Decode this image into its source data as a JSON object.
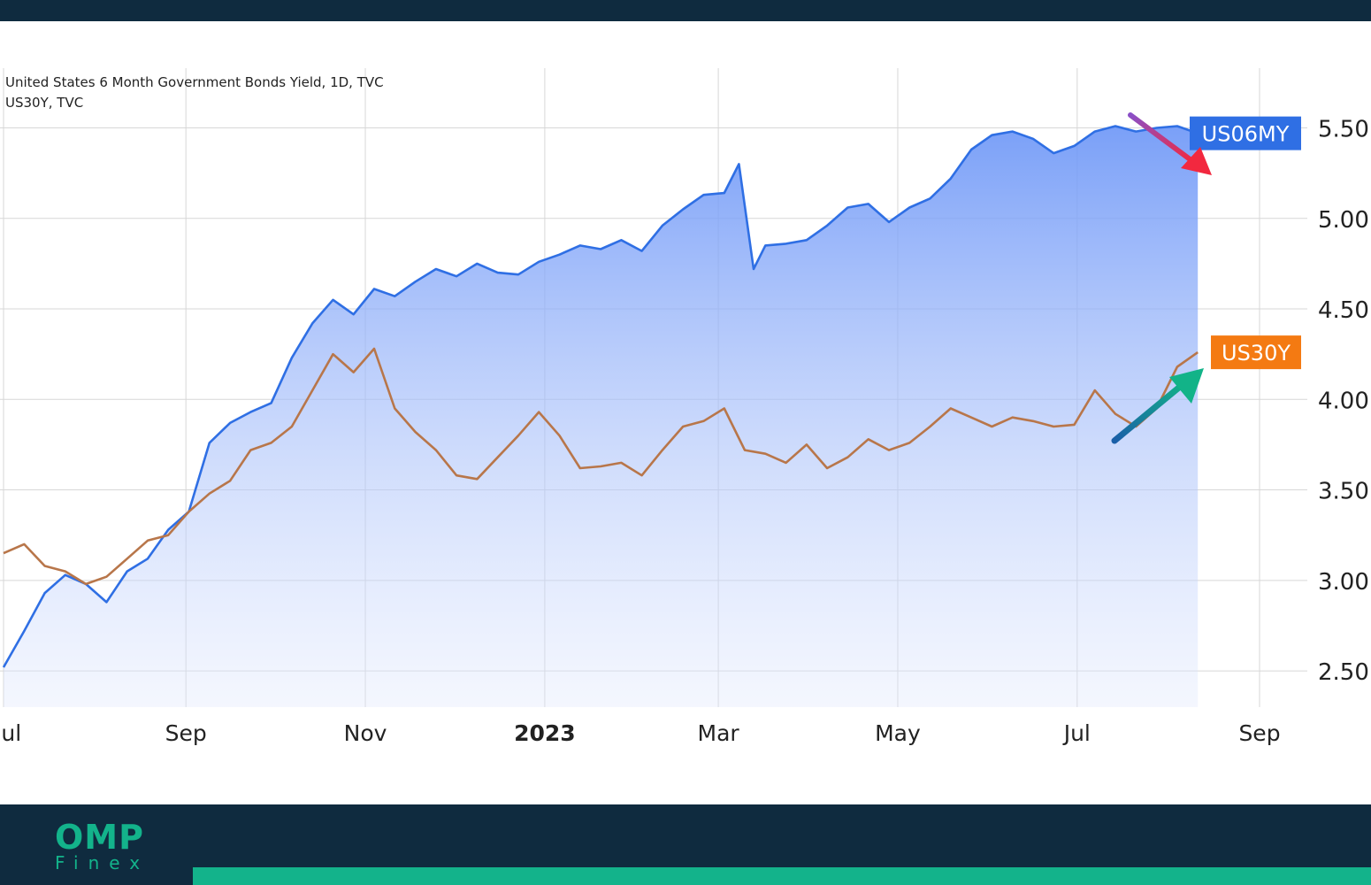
{
  "chart_data": {
    "type": "area",
    "title_lines": [
      "United States 6 Month Government Bonds Yield, 1D, TVC",
      "US30Y, TVC"
    ],
    "x_tick_labels": [
      "Jul",
      "Sep",
      "Nov",
      "2023",
      "Mar",
      "May",
      "Jul",
      "Sep"
    ],
    "x_ticks": [
      "2022-07-01",
      "2022-09-01",
      "2022-11-01",
      "2023-01-01",
      "2023-03-01",
      "2023-05-01",
      "2023-07-01",
      "2023-09-01"
    ],
    "x_range": [
      "2022-07-01",
      "2023-09-01"
    ],
    "y_ticks": [
      2.5,
      3.0,
      3.5,
      4.0,
      4.5,
      5.0,
      5.5
    ],
    "y_tick_labels": [
      "2.50",
      "3.00",
      "3.50",
      "4.00",
      "4.50",
      "5.00",
      "5.50"
    ],
    "ylim": [
      2.3,
      5.83
    ],
    "y_axis_side": "right",
    "grid": true,
    "series": [
      {
        "name": "US06MY",
        "color": "#2f6fe4",
        "fill": true,
        "x": [
          "2022-07-01",
          "2022-07-08",
          "2022-07-15",
          "2022-07-22",
          "2022-07-29",
          "2022-08-05",
          "2022-08-12",
          "2022-08-19",
          "2022-08-26",
          "2022-09-02",
          "2022-09-09",
          "2022-09-16",
          "2022-09-23",
          "2022-09-30",
          "2022-10-07",
          "2022-10-14",
          "2022-10-21",
          "2022-10-28",
          "2022-11-04",
          "2022-11-11",
          "2022-11-18",
          "2022-11-25",
          "2022-12-02",
          "2022-12-09",
          "2022-12-16",
          "2022-12-23",
          "2022-12-30",
          "2023-01-06",
          "2023-01-13",
          "2023-01-20",
          "2023-01-27",
          "2023-02-03",
          "2023-02-10",
          "2023-02-17",
          "2023-02-24",
          "2023-03-03",
          "2023-03-08",
          "2023-03-13",
          "2023-03-17",
          "2023-03-24",
          "2023-03-31",
          "2023-04-07",
          "2023-04-14",
          "2023-04-21",
          "2023-04-28",
          "2023-05-05",
          "2023-05-12",
          "2023-05-19",
          "2023-05-26",
          "2023-06-02",
          "2023-06-09",
          "2023-06-16",
          "2023-06-23",
          "2023-06-30",
          "2023-07-07",
          "2023-07-14",
          "2023-07-21",
          "2023-07-28",
          "2023-08-04",
          "2023-08-11"
        ],
        "values": [
          2.52,
          2.72,
          2.93,
          3.03,
          2.98,
          2.88,
          3.05,
          3.12,
          3.28,
          3.38,
          3.76,
          3.87,
          3.93,
          3.98,
          4.23,
          4.42,
          4.55,
          4.47,
          4.61,
          4.57,
          4.65,
          4.72,
          4.68,
          4.75,
          4.7,
          4.69,
          4.76,
          4.8,
          4.85,
          4.83,
          4.88,
          4.82,
          4.96,
          5.05,
          5.13,
          5.14,
          5.3,
          4.72,
          4.85,
          4.86,
          4.88,
          4.96,
          5.06,
          5.08,
          4.98,
          5.06,
          5.11,
          5.22,
          5.38,
          5.46,
          5.48,
          5.44,
          5.36,
          5.4,
          5.48,
          5.51,
          5.48,
          5.5,
          5.51,
          5.47
        ]
      },
      {
        "name": "US30Y",
        "color": "#b8764a",
        "fill": false,
        "x": [
          "2022-07-01",
          "2022-07-08",
          "2022-07-15",
          "2022-07-22",
          "2022-07-29",
          "2022-08-05",
          "2022-08-12",
          "2022-08-19",
          "2022-08-26",
          "2022-09-02",
          "2022-09-09",
          "2022-09-16",
          "2022-09-23",
          "2022-09-30",
          "2022-10-07",
          "2022-10-14",
          "2022-10-21",
          "2022-10-28",
          "2022-11-04",
          "2022-11-11",
          "2022-11-18",
          "2022-11-25",
          "2022-12-02",
          "2022-12-09",
          "2022-12-16",
          "2022-12-23",
          "2022-12-30",
          "2023-01-06",
          "2023-01-13",
          "2023-01-20",
          "2023-01-27",
          "2023-02-03",
          "2023-02-10",
          "2023-02-17",
          "2023-02-24",
          "2023-03-03",
          "2023-03-10",
          "2023-03-17",
          "2023-03-24",
          "2023-03-31",
          "2023-04-07",
          "2023-04-14",
          "2023-04-21",
          "2023-04-28",
          "2023-05-05",
          "2023-05-12",
          "2023-05-19",
          "2023-05-26",
          "2023-06-02",
          "2023-06-09",
          "2023-06-16",
          "2023-06-23",
          "2023-06-30",
          "2023-07-07",
          "2023-07-14",
          "2023-07-21",
          "2023-07-28",
          "2023-08-04",
          "2023-08-11"
        ],
        "values": [
          3.15,
          3.2,
          3.08,
          3.05,
          2.98,
          3.02,
          3.12,
          3.22,
          3.25,
          3.38,
          3.48,
          3.55,
          3.72,
          3.76,
          3.85,
          4.05,
          4.25,
          4.15,
          4.28,
          3.95,
          3.82,
          3.72,
          3.58,
          3.56,
          3.68,
          3.8,
          3.93,
          3.8,
          3.62,
          3.63,
          3.65,
          3.58,
          3.72,
          3.85,
          3.88,
          3.95,
          3.72,
          3.7,
          3.65,
          3.75,
          3.62,
          3.68,
          3.78,
          3.72,
          3.76,
          3.85,
          3.95,
          3.9,
          3.85,
          3.9,
          3.88,
          3.85,
          3.86,
          4.05,
          3.92,
          3.85,
          3.95,
          4.18,
          4.26
        ]
      }
    ],
    "annotations": [
      {
        "type": "arrow",
        "direction": "down",
        "color": "#e8334a",
        "near": "US06MY"
      },
      {
        "type": "arrow",
        "direction": "up",
        "color": "#12a17f",
        "near": "US30Y"
      }
    ]
  },
  "footer": {
    "brand": "OMP",
    "brand_sub": "Finex",
    "bar_color": "#0f2b3f",
    "accent_color": "#13b38b"
  }
}
